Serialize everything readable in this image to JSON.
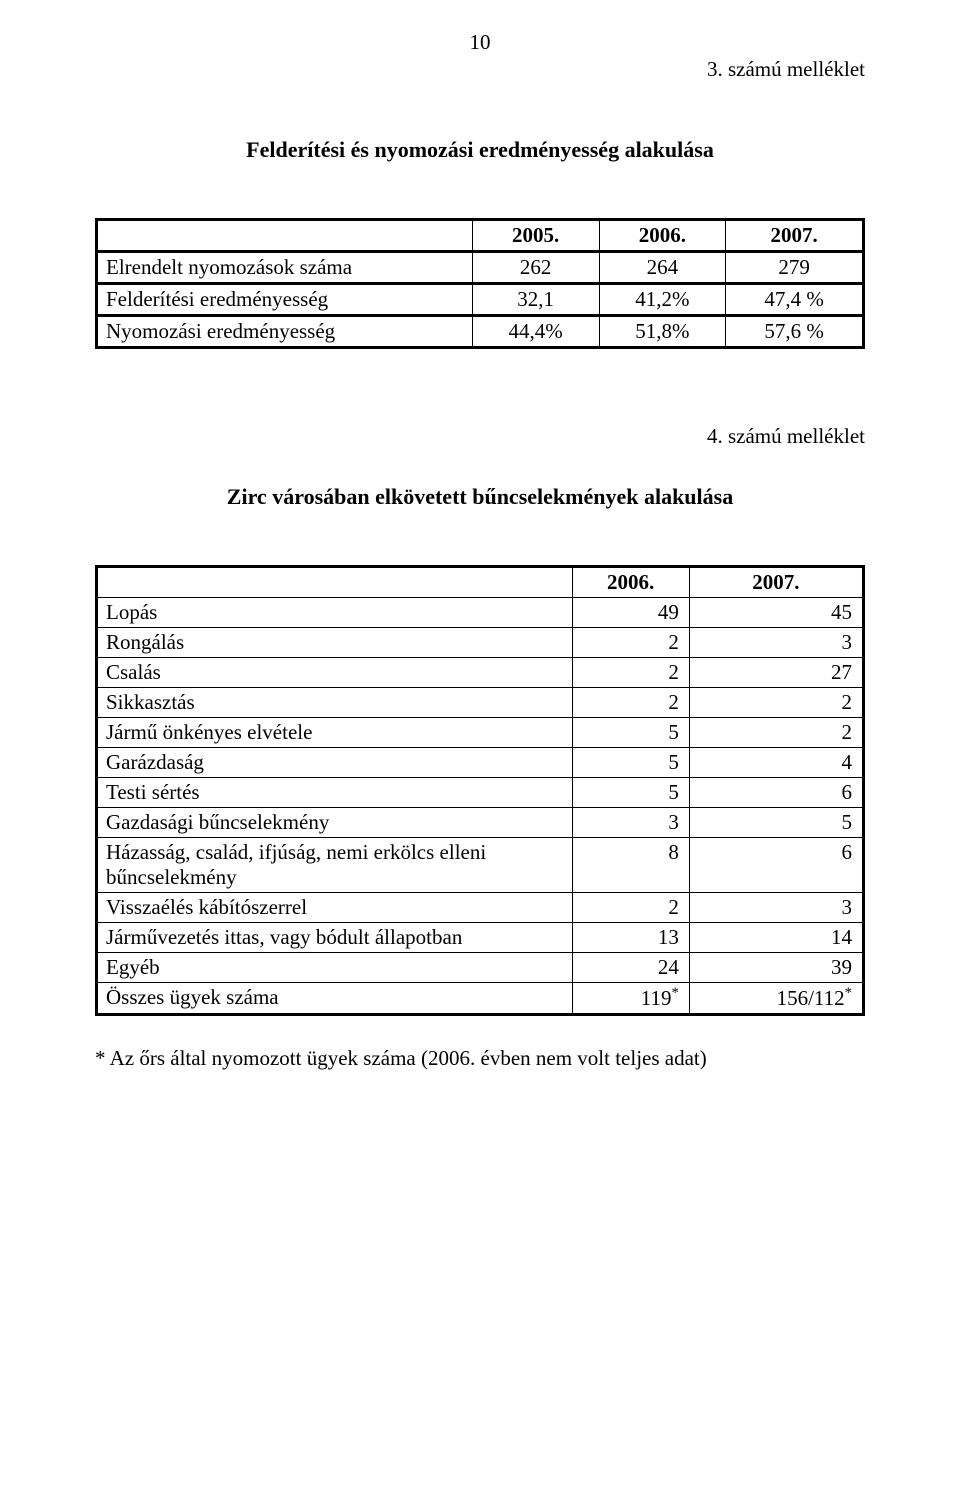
{
  "page_number": "10",
  "attachment1_label": "3. számú melléklet",
  "section1_title": "Felderítési és nyomozási eredményesség alakulása",
  "table1": {
    "headers": [
      "",
      "2005.",
      "2006.",
      "2007."
    ],
    "rows": [
      {
        "label": "Elrendelt nyomozások száma",
        "c2005": "262",
        "c2006": "264",
        "c2007": "279"
      },
      {
        "label": "Felderítési eredményesség",
        "c2005": "32,1",
        "c2006": "41,2%",
        "c2007": "47,4 %"
      },
      {
        "label": "Nyomozási eredményesség",
        "c2005": "44,4%",
        "c2006": "51,8%",
        "c2007": "57,6 %"
      }
    ]
  },
  "attachment2_label": "4. számú melléklet",
  "section2_title": "Zirc városában elkövetett bűncselekmények alakulása",
  "table2": {
    "headers": [
      "",
      "2006.",
      "2007."
    ],
    "rows": [
      {
        "label": "Lopás",
        "c2006": "49",
        "c2007": "45"
      },
      {
        "label": "Rongálás",
        "c2006": "2",
        "c2007": "3"
      },
      {
        "label": "Csalás",
        "c2006": "2",
        "c2007": "27"
      },
      {
        "label": "Sikkasztás",
        "c2006": "2",
        "c2007": "2"
      },
      {
        "label": "Jármű önkényes elvétele",
        "c2006": "5",
        "c2007": "2"
      },
      {
        "label": "Garázdaság",
        "c2006": "5",
        "c2007": "4"
      },
      {
        "label": "Testi sértés",
        "c2006": "5",
        "c2007": "6"
      },
      {
        "label": "Gazdasági bűncselekmény",
        "c2006": "3",
        "c2007": "5"
      },
      {
        "label": "Házasság, család, ifjúság, nemi erkölcs elleni bűncselekmény",
        "c2006": "8",
        "c2007": "6"
      },
      {
        "label": "Visszaélés kábítószerrel",
        "c2006": "2",
        "c2007": "3"
      },
      {
        "label": "Járművezetés ittas, vagy bódult állapotban",
        "c2006": "13",
        "c2007": "14"
      },
      {
        "label": "Egyéb",
        "c2006": "24",
        "c2007": "39"
      }
    ],
    "total_row": {
      "label": "Összes ügyek száma",
      "c2006": "119",
      "c2006_sup": "*",
      "c2007": "156/112",
      "c2007_sup": "*"
    }
  },
  "footnote": "* Az őrs által nyomozott ügyek száma (2006. évben nem volt teljes adat)"
}
